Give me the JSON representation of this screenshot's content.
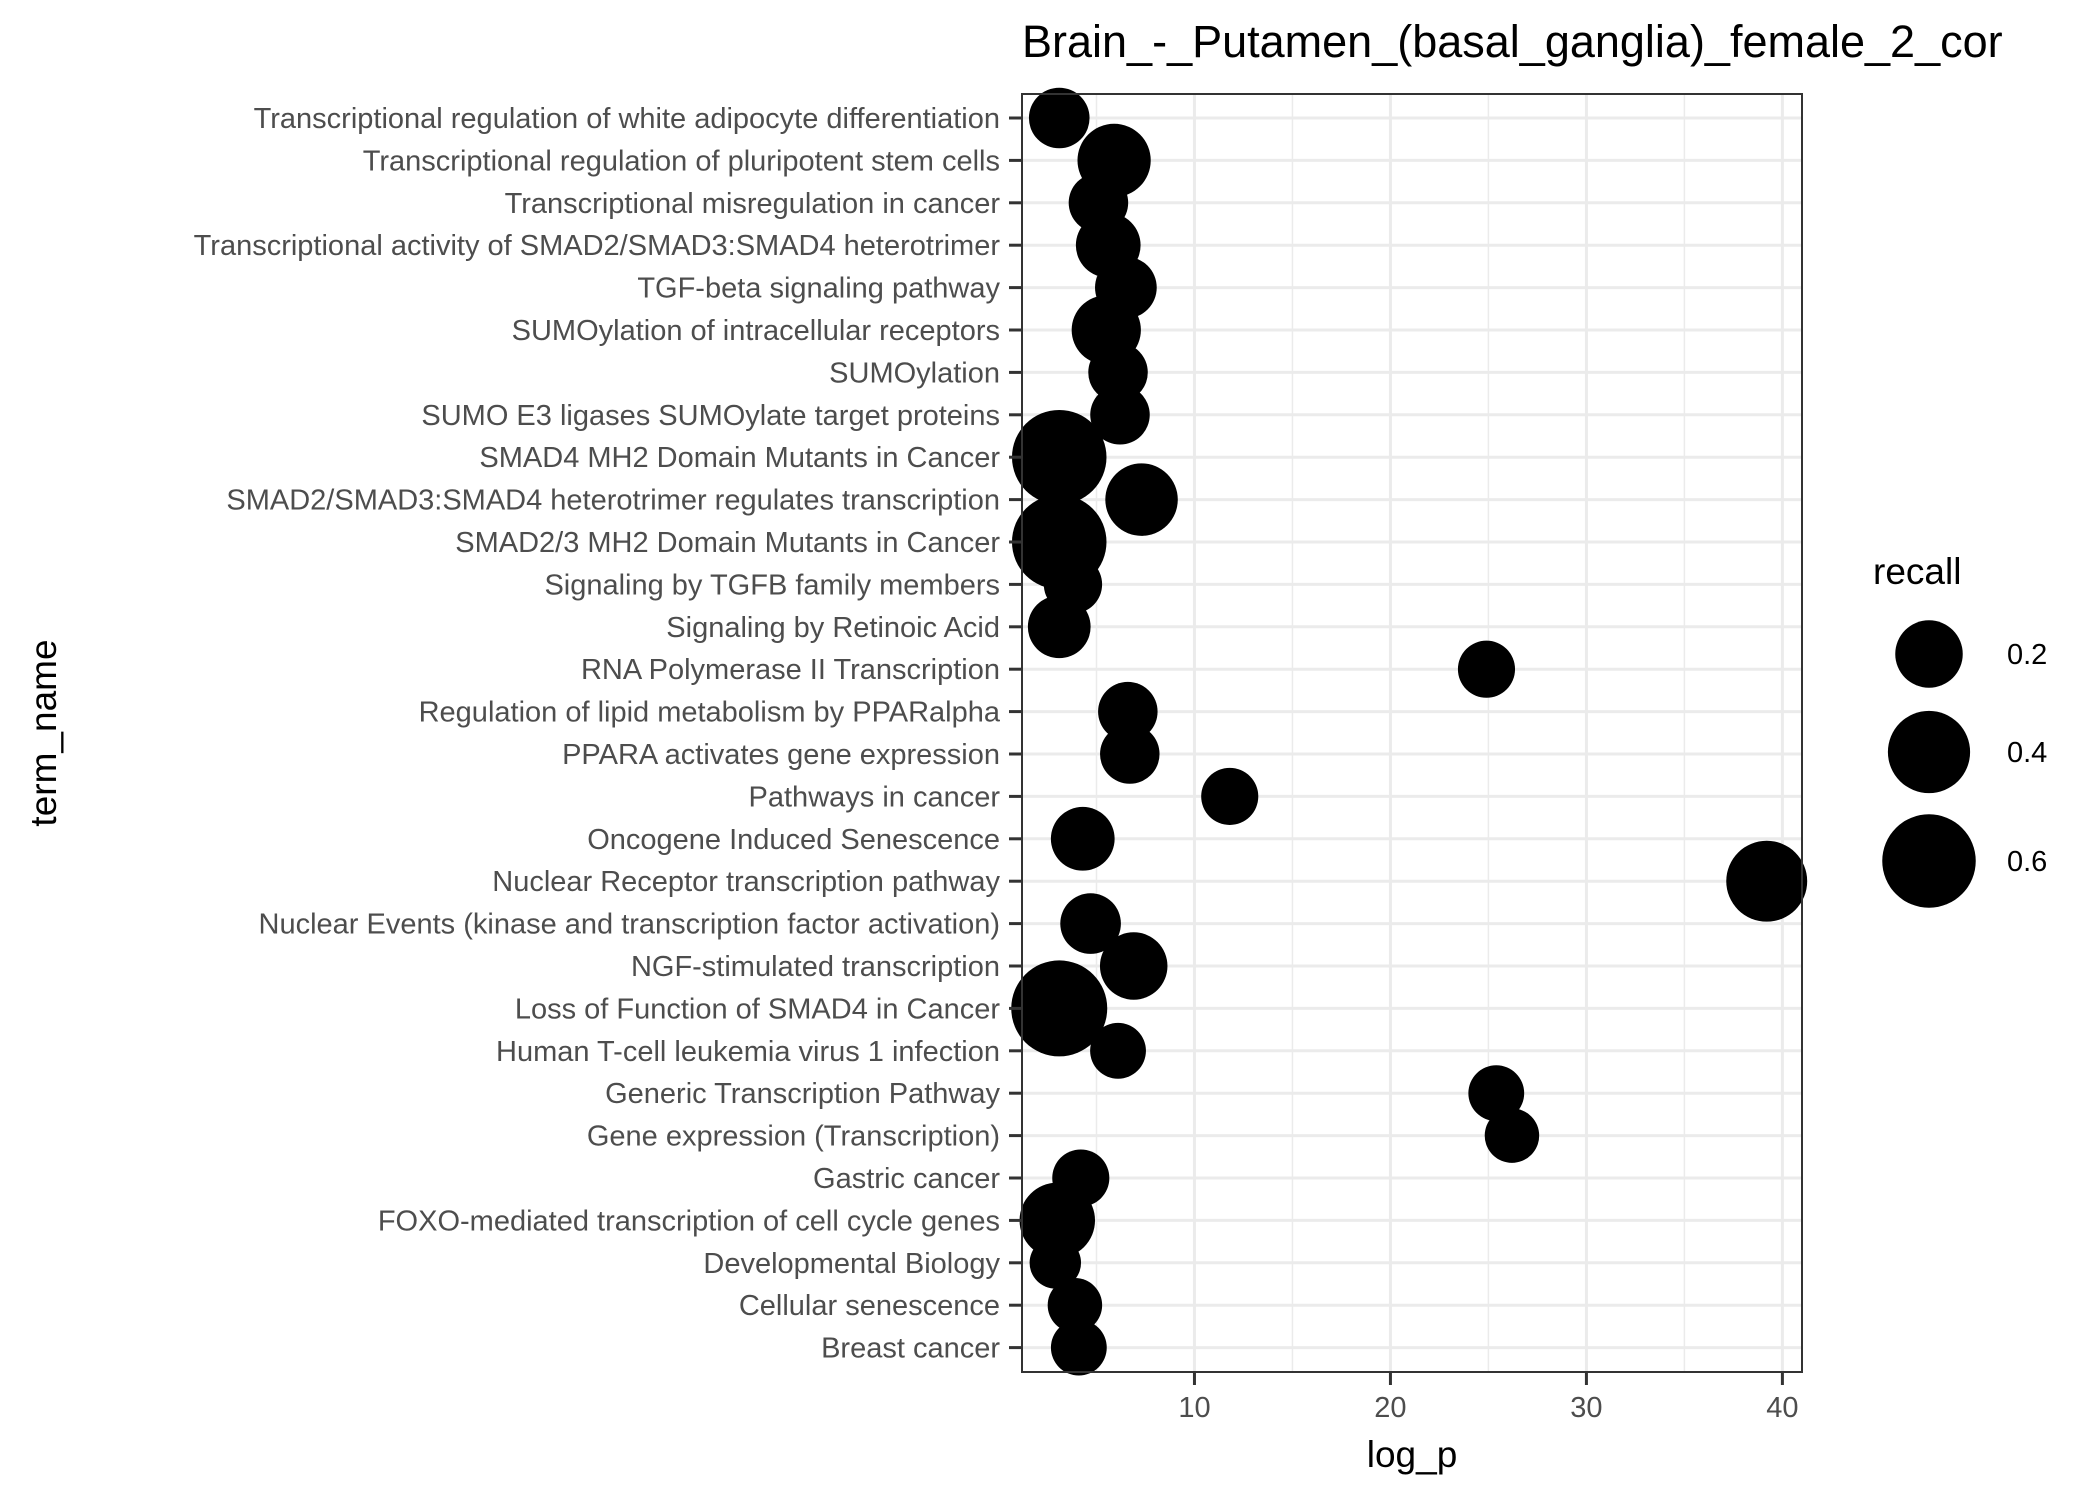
{
  "chart_data": {
    "type": "scatter",
    "title": "Brain_-_Putamen_(basal_ganglia)_female_2_cor",
    "xlabel": "log_p",
    "ylabel": "term_name",
    "xlim": [
      1.2,
      41
    ],
    "x_ticks": [
      10,
      20,
      30,
      40
    ],
    "grid": true,
    "legend": {
      "title": "recall",
      "placement": "right",
      "entries": [
        {
          "label": "0.2",
          "value": 0.2
        },
        {
          "label": "0.4",
          "value": 0.4
        },
        {
          "label": "0.6",
          "value": 0.6
        }
      ]
    },
    "point_color": "#000000",
    "points": [
      {
        "term": "Transcriptional regulation of white adipocyte differentiation",
        "log_p": 3.1,
        "recall": 0.13
      },
      {
        "term": "Transcriptional regulation of pluripotent stem cells",
        "log_p": 5.9,
        "recall": 0.27
      },
      {
        "term": "Transcriptional misregulation in cancer",
        "log_p": 5.1,
        "recall": 0.12
      },
      {
        "term": "Transcriptional activity of SMAD2/SMAD3:SMAD4 heterotrimer",
        "log_p": 5.6,
        "recall": 0.17
      },
      {
        "term": "TGF-beta signaling pathway",
        "log_p": 6.5,
        "recall": 0.14
      },
      {
        "term": "SUMOylation of intracellular receptors",
        "log_p": 5.5,
        "recall": 0.22
      },
      {
        "term": "SUMOylation",
        "log_p": 6.1,
        "recall": 0.12
      },
      {
        "term": "SUMO E3 ligases SUMOylate target proteins",
        "log_p": 6.2,
        "recall": 0.12
      },
      {
        "term": "SMAD4 MH2 Domain Mutants in Cancer",
        "log_p": 3.1,
        "recall": 0.62
      },
      {
        "term": "SMAD2/SMAD3:SMAD4 heterotrimer regulates transcription",
        "log_p": 7.3,
        "recall": 0.26
      },
      {
        "term": "SMAD2/3 MH2 Domain Mutants in Cancer",
        "log_p": 3.1,
        "recall": 0.62
      },
      {
        "term": "Signaling by TGFB family members",
        "log_p": 3.8,
        "recall": 0.11
      },
      {
        "term": "Signaling by Retinoic Acid",
        "log_p": 3.1,
        "recall": 0.15
      },
      {
        "term": "RNA Polymerase II Transcription",
        "log_p": 24.9,
        "recall": 0.1
      },
      {
        "term": "Regulation of lipid metabolism by PPARalpha",
        "log_p": 6.6,
        "recall": 0.12
      },
      {
        "term": "PPARA activates gene expression",
        "log_p": 6.7,
        "recall": 0.12
      },
      {
        "term": "Pathways in cancer",
        "log_p": 11.8,
        "recall": 0.1
      },
      {
        "term": "Oncogene Induced Senescence",
        "log_p": 4.3,
        "recall": 0.16
      },
      {
        "term": "Nuclear Receptor transcription pathway",
        "log_p": 39.2,
        "recall": 0.38
      },
      {
        "term": "Nuclear Events (kinase and transcription factor activation)",
        "log_p": 4.7,
        "recall": 0.13
      },
      {
        "term": "NGF-stimulated transcription",
        "log_p": 6.9,
        "recall": 0.2
      },
      {
        "term": "Loss of Function of SMAD4 in Cancer",
        "log_p": 3.1,
        "recall": 0.65
      },
      {
        "term": "Human T-cell leukemia virus 1 infection",
        "log_p": 6.1,
        "recall": 0.09
      },
      {
        "term": "Generic Transcription Pathway",
        "log_p": 25.4,
        "recall": 0.09
      },
      {
        "term": "Gene expression (Transcription)",
        "log_p": 26.2,
        "recall": 0.08
      },
      {
        "term": "Gastric cancer",
        "log_p": 4.2,
        "recall": 0.1
      },
      {
        "term": "FOXO-mediated transcription of cell cycle genes",
        "log_p": 3.0,
        "recall": 0.3
      },
      {
        "term": "Developmental Biology",
        "log_p": 2.9,
        "recall": 0.06
      },
      {
        "term": "Cellular senescence",
        "log_p": 3.9,
        "recall": 0.08
      },
      {
        "term": "Breast cancer",
        "log_p": 4.1,
        "recall": 0.09
      }
    ]
  }
}
